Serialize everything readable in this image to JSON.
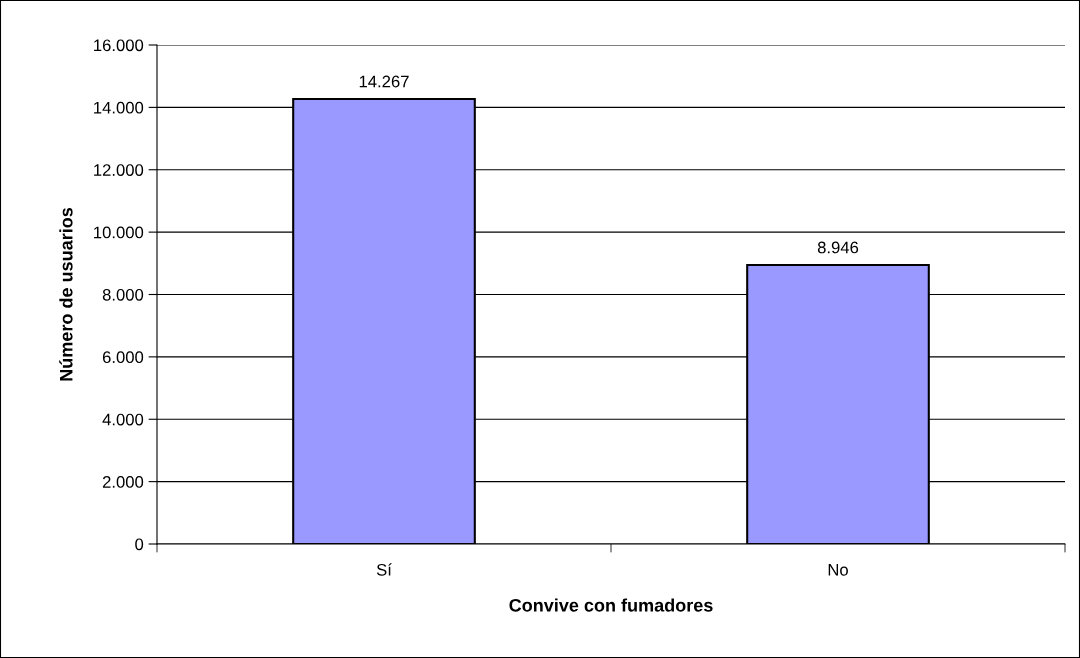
{
  "chart_data": {
    "type": "bar",
    "xlabel": "Convive con fumadores",
    "ylabel": "Número de usuarios",
    "categories": [
      "Sí",
      "No"
    ],
    "values": [
      14267,
      8946
    ],
    "value_labels": [
      "14.267",
      "8.946"
    ],
    "color": "#9999ff",
    "ylim": [
      0,
      16000
    ],
    "yticks": [
      {
        "value": 0,
        "label": "0"
      },
      {
        "value": 2000,
        "label": "2.000"
      },
      {
        "value": 4000,
        "label": "4.000"
      },
      {
        "value": 6000,
        "label": "6.000"
      },
      {
        "value": 8000,
        "label": "8.000"
      },
      {
        "value": 10000,
        "label": "10.000"
      },
      {
        "value": 12000,
        "label": "12.000"
      },
      {
        "value": 14000,
        "label": "14.000"
      },
      {
        "value": 16000,
        "label": "16.000"
      }
    ],
    "grid": "y",
    "legend": false
  }
}
